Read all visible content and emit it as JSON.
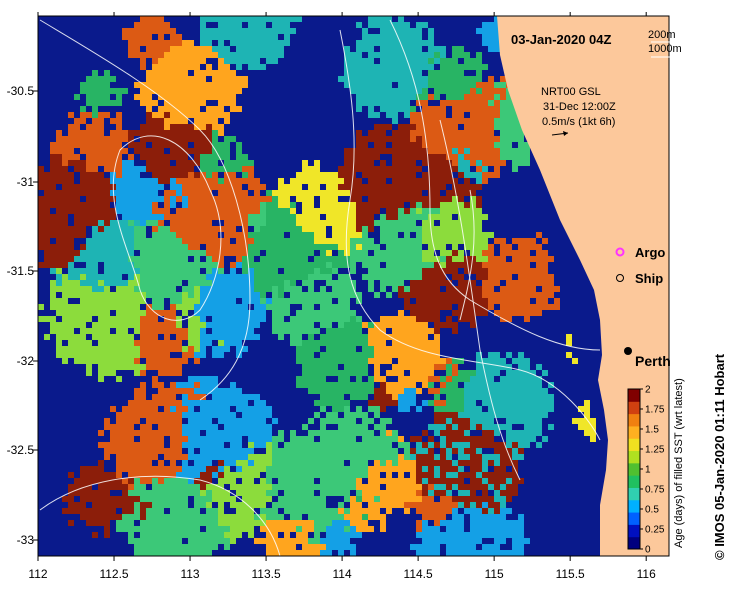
{
  "header": {
    "timestamp": "03-Jan-2020 04Z",
    "contour_200": "200m",
    "contour_1000": "1000m"
  },
  "current_info": {
    "line1": "NRT00 GSL",
    "line2": "31-Dec 12:00Z",
    "line3": "0.5m/s (1kt 6h)"
  },
  "legend": {
    "argo": "Argo",
    "ship": "Ship",
    "argo_color": "#ff33ff"
  },
  "places": {
    "perth": "Perth"
  },
  "axes": {
    "x_ticks": [
      "112",
      "112.5",
      "113",
      "113.5",
      "114",
      "114.5",
      "115",
      "115.5",
      "116"
    ],
    "y_ticks": [
      "-30.5",
      "-31",
      "-31.5",
      "-32",
      "-32.5",
      "-33"
    ]
  },
  "colorbar": {
    "label": "Age (days) of filled SST (wrt latest)",
    "ticks": [
      "2",
      "1.75",
      "1.5",
      "1.25",
      "1",
      "0.75",
      "0.5",
      "0.25",
      "0"
    ],
    "colors": [
      "#00007f",
      "#0010c0",
      "#0060ff",
      "#00b0ff",
      "#30d0b0",
      "#20c060",
      "#50c030",
      "#b0e020",
      "#f0e020",
      "#ffb020",
      "#f08010",
      "#d04010",
      "#800000"
    ]
  },
  "credit": "© IMOS 05-Jan-2020 01:11 Hobart",
  "colors": {
    "land": "#fcc89b",
    "deep_blue": "#0a1a8c",
    "orange": "#ffa51e",
    "green": "#28b464",
    "light_green": "#3cc878",
    "teal": "#1eb4b4",
    "cyan": "#14a0e6",
    "yellow": "#f0e628",
    "lime": "#8cdc3c",
    "red_brown": "#dc5a14",
    "dark_red": "#8c1e0a"
  }
}
